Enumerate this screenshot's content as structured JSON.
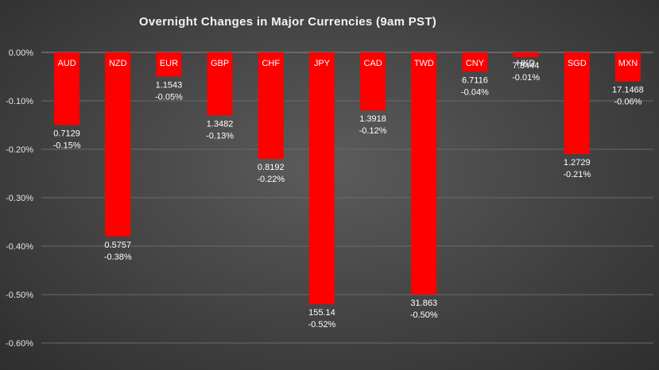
{
  "chart_data": {
    "type": "bar",
    "title": "Overnight Changes in Major Currencies (9am PST)",
    "xlabel": "",
    "ylabel": "",
    "categories": [
      "AUD",
      "NZD",
      "EUR",
      "GBP",
      "CHF",
      "JPY",
      "CAD",
      "TWD",
      "CNY",
      "HKD",
      "SGD",
      "MXN"
    ],
    "series": [
      {
        "values": [
          -0.15,
          -0.38,
          -0.05,
          -0.13,
          -0.22,
          -0.52,
          -0.12,
          -0.5,
          -0.04,
          -0.01,
          -0.21,
          -0.06
        ]
      }
    ],
    "rate_labels": [
      "0.7129",
      "0.5757",
      "1.1543",
      "1.3482",
      "0.8192",
      "155.14",
      "1.3918",
      "31.863",
      "6.7116",
      "7.8444",
      "1.2729",
      "17.1468"
    ],
    "change_labels": [
      "-0.15%",
      "-0.38%",
      "-0.05%",
      "-0.13%",
      "-0.22%",
      "-0.52%",
      "-0.12%",
      "-0.50%",
      "-0.04%",
      "-0.01%",
      "-0.21%",
      "-0.06%"
    ],
    "ylim": [
      -0.6,
      0
    ],
    "yticks": [
      0,
      -0.1,
      -0.2,
      -0.3,
      -0.4,
      -0.5,
      -0.6
    ],
    "ytick_labels": [
      "0.00%",
      "-0.10%",
      "-0.20%",
      "-0.30%",
      "-0.40%",
      "-0.50%",
      "-0.60%"
    ],
    "grid": true,
    "legend": "none",
    "colors": {
      "bar": "#ff0000",
      "background": "#474747",
      "text": "#ffffff",
      "grid": "#6a6a6a"
    }
  }
}
